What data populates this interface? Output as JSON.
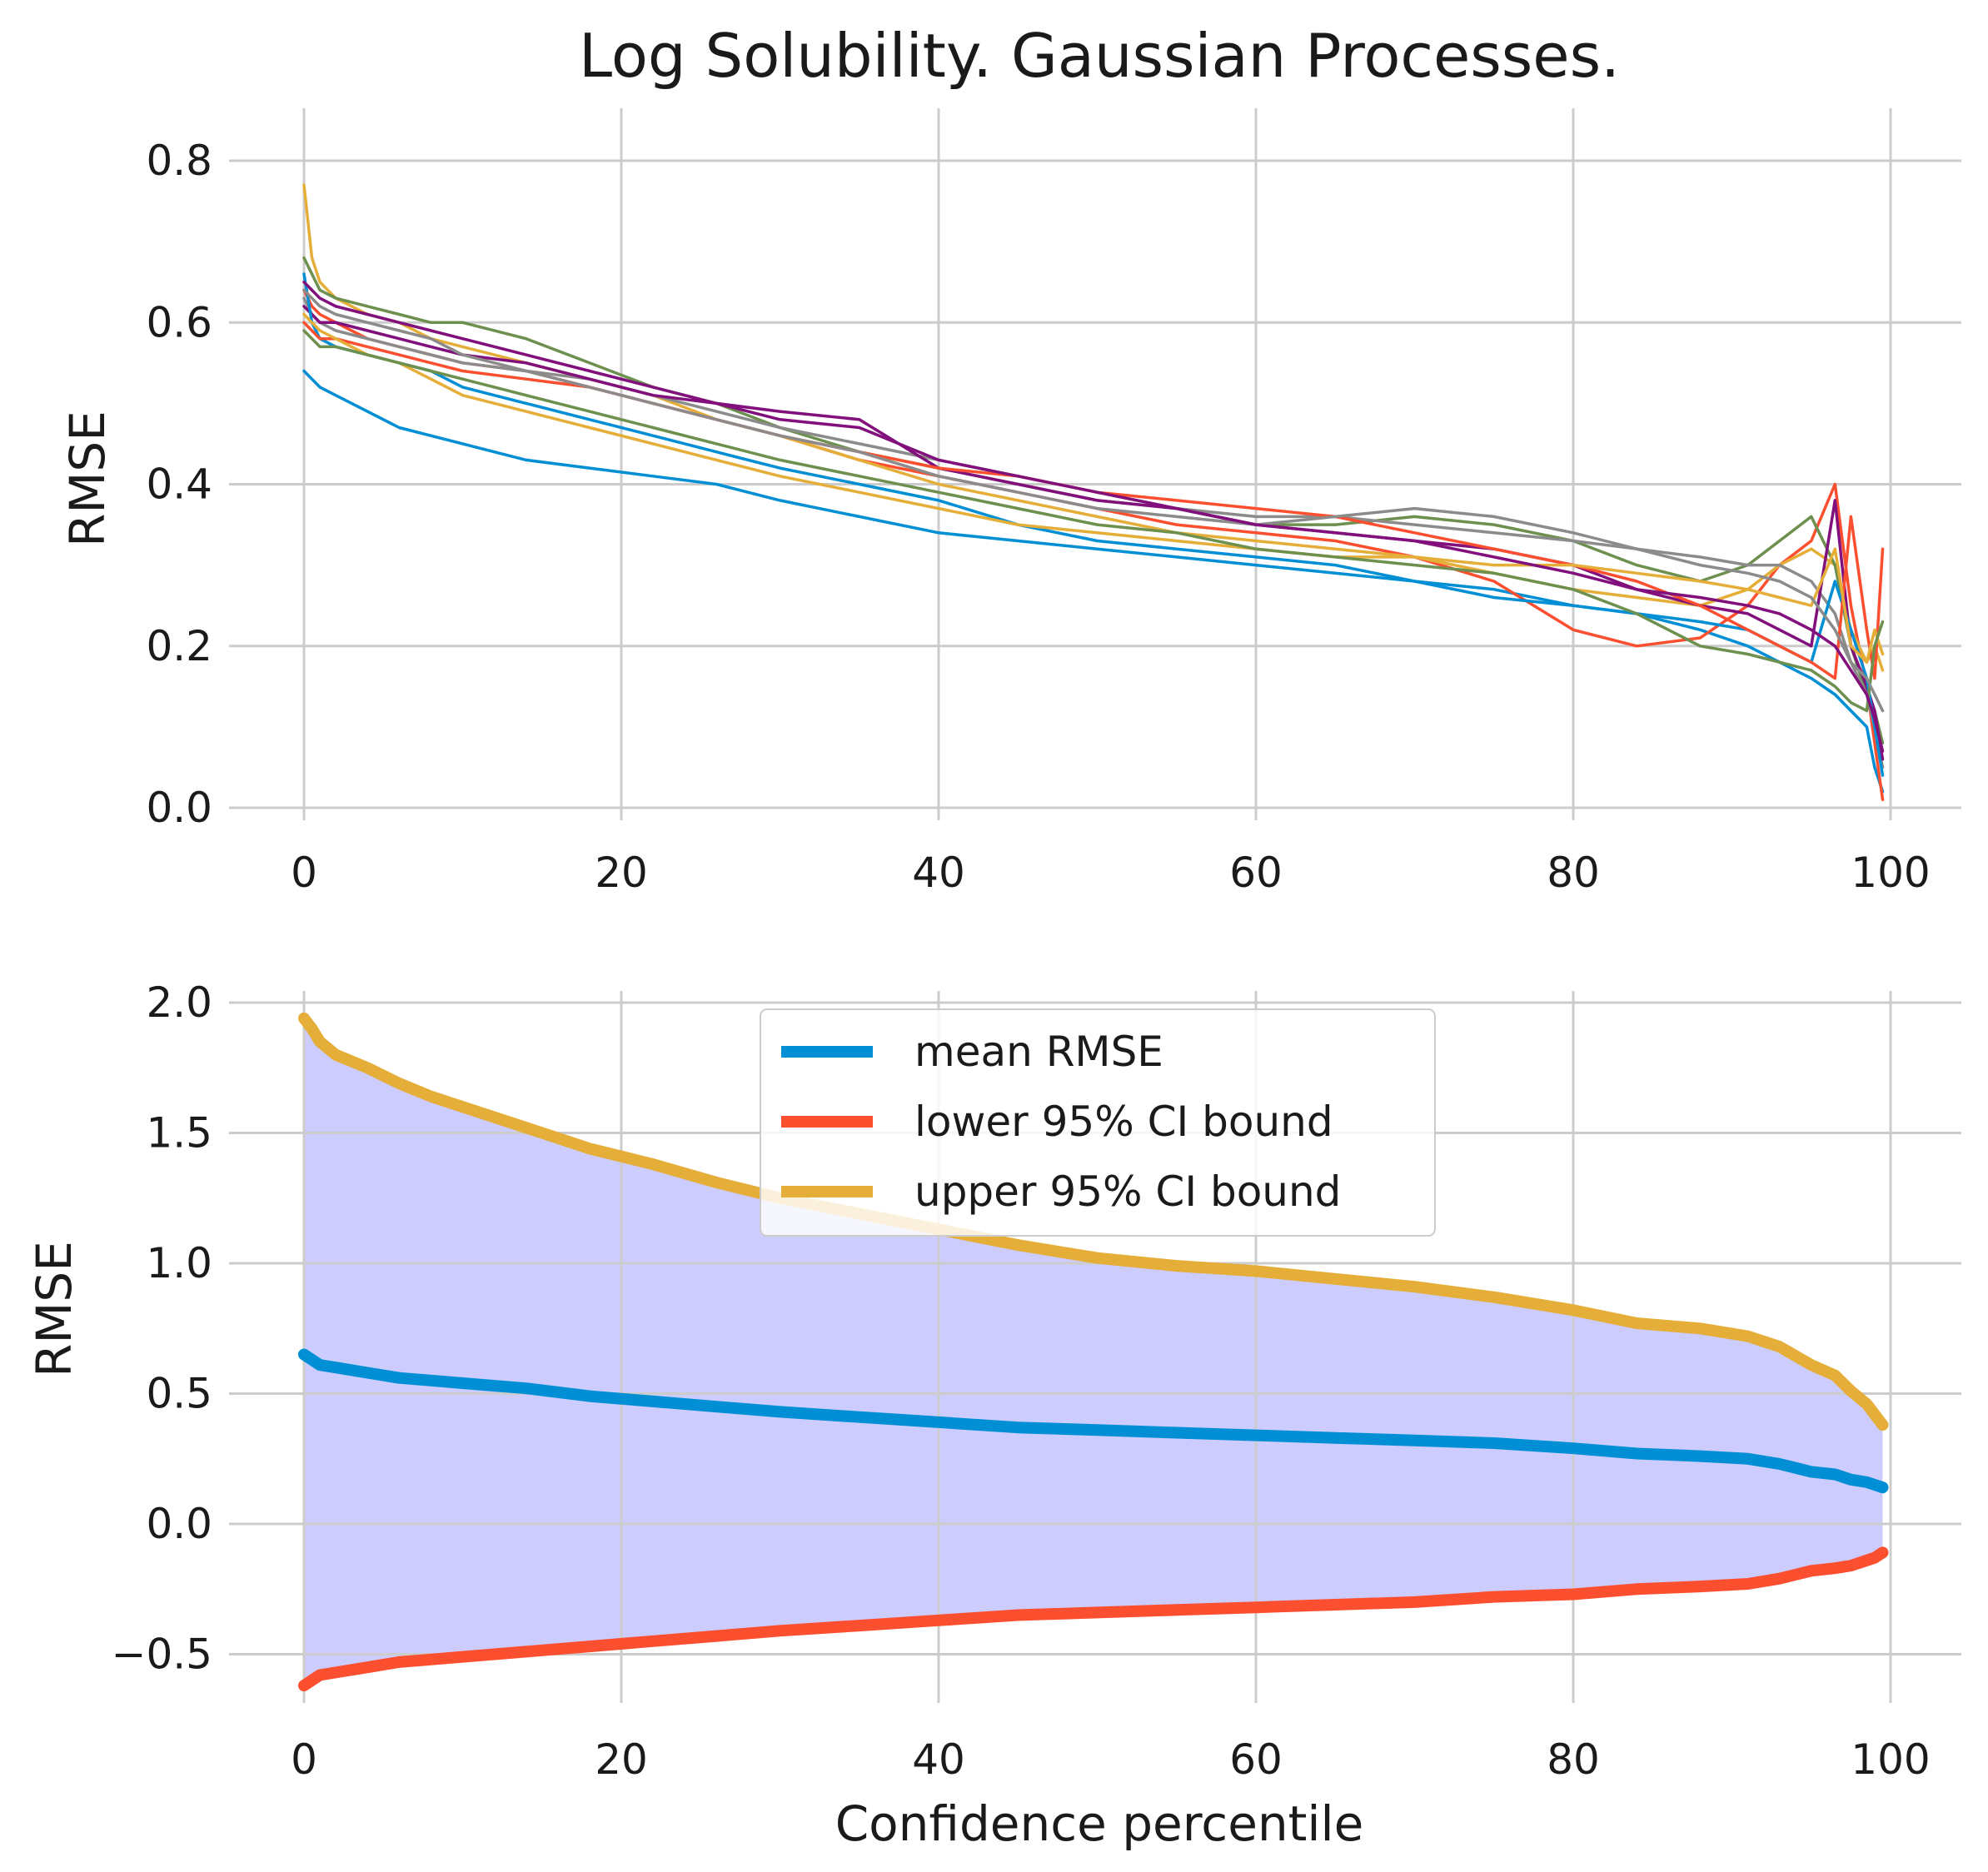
{
  "figure": {
    "title": "Log Solubility. Gaussian Processes.",
    "colors": {
      "mean": "#008fd5",
      "lower": "#fc4f30",
      "upper": "#e5ae38",
      "fill": "#ccccff",
      "grid": "#cccccc"
    }
  },
  "chart_data": [
    {
      "type": "line",
      "title": "Log Solubility. Gaussian Processes.",
      "xlabel": "",
      "ylabel": "RMSE",
      "xlim": [
        0,
        100
      ],
      "ylim": [
        0,
        0.85
      ],
      "xticks": [
        "0",
        "20",
        "40",
        "60",
        "80",
        "100"
      ],
      "yticks": [
        "0.0",
        "0.2",
        "0.4",
        "0.6",
        "0.8"
      ],
      "grid": true,
      "x": [
        0,
        0.5,
        1,
        2,
        4,
        6,
        8,
        10,
        14,
        18,
        22,
        26,
        30,
        35,
        40,
        45,
        50,
        55,
        60,
        65,
        70,
        75,
        80,
        84,
        88,
        91,
        93,
        95,
        96.5,
        97.5,
        98.5,
        99,
        99.5
      ],
      "series": [
        {
          "color": "#008fd5",
          "values": [
            0.54,
            0.53,
            0.52,
            0.51,
            0.49,
            0.47,
            0.46,
            0.45,
            0.43,
            0.42,
            0.41,
            0.4,
            0.38,
            0.36,
            0.34,
            0.33,
            0.32,
            0.31,
            0.3,
            0.29,
            0.28,
            0.27,
            0.25,
            0.24,
            0.22,
            0.2,
            0.18,
            0.16,
            0.14,
            0.12,
            0.1,
            0.05,
            0.02
          ]
        },
        {
          "color": "#fc4f30",
          "values": [
            0.64,
            0.62,
            0.61,
            0.6,
            0.58,
            0.57,
            0.56,
            0.55,
            0.54,
            0.52,
            0.5,
            0.48,
            0.46,
            0.43,
            0.41,
            0.39,
            0.37,
            0.35,
            0.34,
            0.33,
            0.31,
            0.28,
            0.22,
            0.2,
            0.21,
            0.25,
            0.3,
            0.33,
            0.4,
            0.25,
            0.15,
            0.08,
            0.01
          ]
        },
        {
          "color": "#e5ae38",
          "values": [
            0.77,
            0.68,
            0.65,
            0.63,
            0.61,
            0.6,
            0.58,
            0.57,
            0.55,
            0.53,
            0.51,
            0.48,
            0.46,
            0.43,
            0.4,
            0.38,
            0.36,
            0.34,
            0.33,
            0.32,
            0.31,
            0.29,
            0.27,
            0.26,
            0.25,
            0.27,
            0.3,
            0.32,
            0.3,
            0.22,
            0.18,
            0.2,
            0.17
          ]
        },
        {
          "color": "#6d904f",
          "values": [
            0.68,
            0.66,
            0.64,
            0.63,
            0.62,
            0.61,
            0.6,
            0.6,
            0.58,
            0.55,
            0.52,
            0.5,
            0.47,
            0.44,
            0.42,
            0.4,
            0.38,
            0.37,
            0.35,
            0.35,
            0.36,
            0.35,
            0.33,
            0.3,
            0.28,
            0.3,
            0.33,
            0.36,
            0.3,
            0.2,
            0.14,
            0.12,
            0.08
          ]
        },
        {
          "color": "#8b8b8b",
          "values": [
            0.63,
            0.61,
            0.6,
            0.59,
            0.58,
            0.57,
            0.56,
            0.55,
            0.54,
            0.53,
            0.51,
            0.49,
            0.47,
            0.45,
            0.43,
            0.41,
            0.39,
            0.37,
            0.36,
            0.36,
            0.35,
            0.34,
            0.33,
            0.32,
            0.31,
            0.3,
            0.3,
            0.28,
            0.24,
            0.18,
            0.14,
            0.1,
            0.05
          ]
        },
        {
          "color": "#810f7c",
          "values": [
            0.62,
            0.61,
            0.6,
            0.6,
            0.59,
            0.58,
            0.57,
            0.56,
            0.55,
            0.53,
            0.51,
            0.5,
            0.49,
            0.48,
            0.42,
            0.4,
            0.38,
            0.37,
            0.35,
            0.34,
            0.33,
            0.32,
            0.3,
            0.27,
            0.25,
            0.24,
            0.22,
            0.2,
            0.38,
            0.2,
            0.15,
            0.12,
            0.06
          ]
        },
        {
          "color": "#008fd5",
          "values": [
            0.66,
            0.6,
            0.58,
            0.57,
            0.56,
            0.55,
            0.54,
            0.52,
            0.5,
            0.48,
            0.46,
            0.44,
            0.42,
            0.4,
            0.38,
            0.35,
            0.33,
            0.32,
            0.31,
            0.3,
            0.28,
            0.26,
            0.25,
            0.24,
            0.23,
            0.22,
            0.2,
            0.18,
            0.28,
            0.22,
            0.16,
            0.1,
            0.04
          ]
        },
        {
          "color": "#fc4f30",
          "values": [
            0.6,
            0.59,
            0.58,
            0.58,
            0.57,
            0.56,
            0.55,
            0.54,
            0.53,
            0.52,
            0.5,
            0.48,
            0.46,
            0.44,
            0.42,
            0.41,
            0.39,
            0.38,
            0.37,
            0.36,
            0.34,
            0.32,
            0.3,
            0.28,
            0.25,
            0.22,
            0.2,
            0.18,
            0.16,
            0.36,
            0.22,
            0.16,
            0.32
          ]
        },
        {
          "color": "#e5ae38",
          "values": [
            0.61,
            0.6,
            0.59,
            0.58,
            0.56,
            0.55,
            0.53,
            0.51,
            0.49,
            0.47,
            0.45,
            0.43,
            0.41,
            0.39,
            0.37,
            0.35,
            0.34,
            0.33,
            0.32,
            0.31,
            0.31,
            0.3,
            0.3,
            0.29,
            0.28,
            0.27,
            0.26,
            0.25,
            0.32,
            0.2,
            0.18,
            0.22,
            0.19
          ]
        },
        {
          "color": "#6d904f",
          "values": [
            0.59,
            0.58,
            0.57,
            0.57,
            0.56,
            0.55,
            0.54,
            0.53,
            0.51,
            0.49,
            0.47,
            0.45,
            0.43,
            0.41,
            0.39,
            0.37,
            0.35,
            0.34,
            0.32,
            0.31,
            0.3,
            0.29,
            0.27,
            0.24,
            0.2,
            0.19,
            0.18,
            0.17,
            0.15,
            0.13,
            0.12,
            0.2,
            0.23
          ]
        },
        {
          "color": "#8b8b8b",
          "values": [
            0.64,
            0.63,
            0.62,
            0.61,
            0.6,
            0.59,
            0.58,
            0.56,
            0.54,
            0.52,
            0.5,
            0.48,
            0.46,
            0.44,
            0.41,
            0.39,
            0.37,
            0.36,
            0.35,
            0.36,
            0.37,
            0.36,
            0.34,
            0.32,
            0.3,
            0.29,
            0.28,
            0.26,
            0.22,
            0.18,
            0.16,
            0.14,
            0.12
          ]
        },
        {
          "color": "#810f7c",
          "values": [
            0.65,
            0.64,
            0.63,
            0.62,
            0.61,
            0.6,
            0.59,
            0.58,
            0.56,
            0.54,
            0.52,
            0.5,
            0.48,
            0.47,
            0.43,
            0.41,
            0.39,
            0.37,
            0.35,
            0.34,
            0.33,
            0.31,
            0.29,
            0.27,
            0.26,
            0.25,
            0.24,
            0.22,
            0.2,
            0.17,
            0.14,
            0.11,
            0.07
          ]
        }
      ]
    },
    {
      "type": "line",
      "title": "",
      "xlabel": "Confidence percentile",
      "ylabel": "RMSE",
      "xlim": [
        0,
        100
      ],
      "ylim": [
        -0.72,
        2.02
      ],
      "xticks": [
        "0",
        "20",
        "40",
        "60",
        "80",
        "100"
      ],
      "yticks": [
        "−0.5",
        "0.0",
        "0.5",
        "1.0",
        "1.5",
        "2.0"
      ],
      "grid": true,
      "legend_position": "upper center",
      "fill_between": {
        "lower_series": "lower 95% CI bound",
        "upper_series": "upper 95% CI bound",
        "color": "#ccccff"
      },
      "x": [
        0,
        0.5,
        1,
        2,
        4,
        6,
        8,
        10,
        14,
        18,
        22,
        26,
        30,
        35,
        40,
        45,
        50,
        55,
        60,
        65,
        70,
        75,
        80,
        84,
        88,
        91,
        93,
        95,
        96.5,
        97.5,
        98.5,
        99,
        99.5
      ],
      "series": [
        {
          "name": "mean RMSE",
          "color": "#008fd5",
          "values": [
            0.65,
            0.63,
            0.61,
            0.6,
            0.58,
            0.56,
            0.55,
            0.54,
            0.52,
            0.49,
            0.47,
            0.45,
            0.43,
            0.41,
            0.39,
            0.37,
            0.36,
            0.35,
            0.34,
            0.33,
            0.32,
            0.31,
            0.29,
            0.27,
            0.26,
            0.25,
            0.23,
            0.2,
            0.19,
            0.17,
            0.16,
            0.15,
            0.14
          ]
        },
        {
          "name": "lower 95% CI bound",
          "color": "#fc4f30",
          "values": [
            -0.62,
            -0.6,
            -0.58,
            -0.57,
            -0.55,
            -0.53,
            -0.52,
            -0.51,
            -0.49,
            -0.47,
            -0.45,
            -0.43,
            -0.41,
            -0.39,
            -0.37,
            -0.35,
            -0.34,
            -0.33,
            -0.32,
            -0.31,
            -0.3,
            -0.28,
            -0.27,
            -0.25,
            -0.24,
            -0.23,
            -0.21,
            -0.18,
            -0.17,
            -0.16,
            -0.14,
            -0.13,
            -0.11
          ]
        },
        {
          "name": "upper 95% CI bound",
          "color": "#e5ae38",
          "values": [
            1.94,
            1.9,
            1.85,
            1.8,
            1.75,
            1.69,
            1.64,
            1.6,
            1.52,
            1.44,
            1.38,
            1.31,
            1.25,
            1.19,
            1.13,
            1.07,
            1.02,
            0.99,
            0.97,
            0.94,
            0.91,
            0.87,
            0.82,
            0.77,
            0.75,
            0.72,
            0.68,
            0.61,
            0.57,
            0.51,
            0.46,
            0.42,
            0.38
          ]
        }
      ]
    }
  ]
}
